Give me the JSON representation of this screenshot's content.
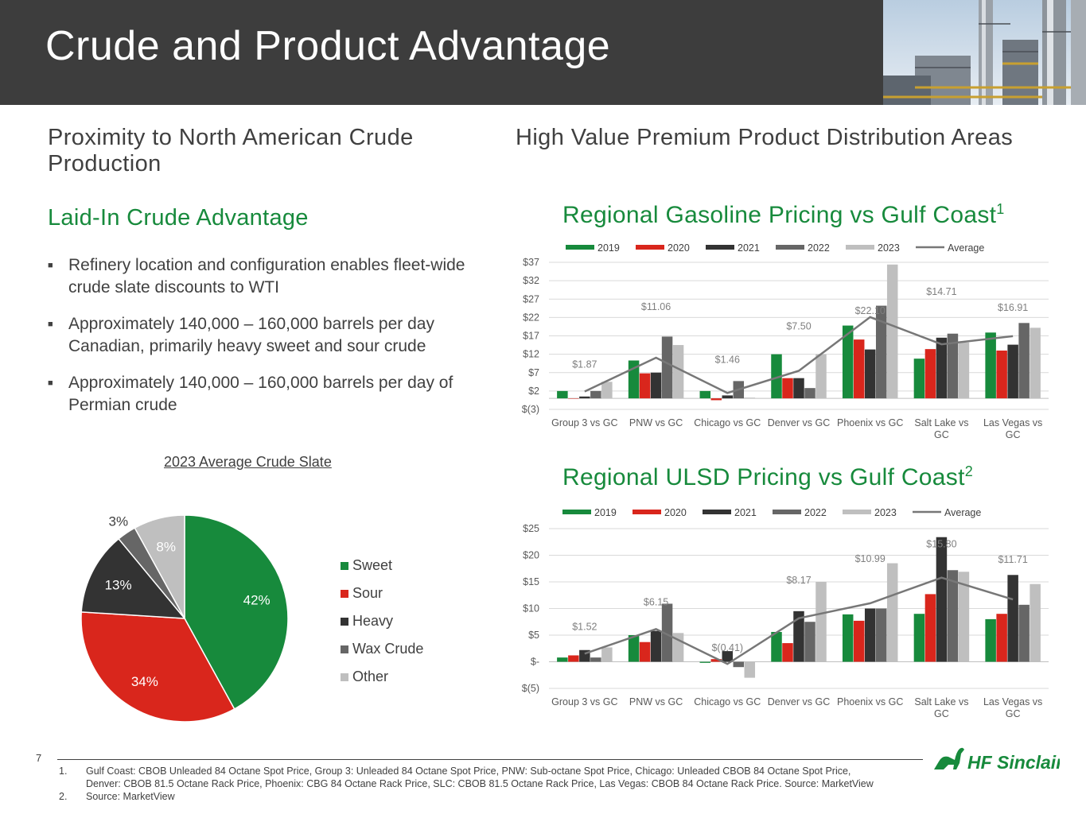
{
  "header": {
    "title": "Crude and Product Advantage"
  },
  "left": {
    "section_title": "Proximity to North American Crude Production",
    "subtitle": "Laid-In Crude Advantage",
    "bullets": [
      "Refinery location and configuration enables fleet-wide crude slate discounts to WTI",
      "Approximately 140,000 – 160,000 barrels per day Canadian, primarily heavy sweet and sour crude",
      "Approximately 140,000 – 160,000 barrels per day of Permian crude"
    ]
  },
  "right": {
    "section_title": "High Value Premium Product Distribution Areas"
  },
  "colors": {
    "y2019": "#178a3c",
    "y2020": "#d9261c",
    "y2021": "#333333",
    "y2022": "#666666",
    "y2023": "#bfbfbf",
    "average": "#777777",
    "other": "#bfbfbf"
  },
  "chart_data": [
    {
      "type": "pie",
      "title": "2023 Average Crude Slate",
      "labels": [
        "Sweet",
        "Sour",
        "Heavy",
        "Wax Crude",
        "Other"
      ],
      "values": [
        42,
        34,
        13,
        3,
        8
      ],
      "value_labels": [
        "42%",
        "34%",
        "13%",
        "3%",
        "8%"
      ],
      "colors": [
        "#178a3c",
        "#d9261c",
        "#333333",
        "#666666",
        "#bfbfbf"
      ]
    },
    {
      "type": "bar",
      "title": "Regional Gasoline Pricing vs Gulf Coast",
      "title_sup": "1",
      "categories": [
        "Group 3 vs GC",
        "PNW vs GC",
        "Chicago vs GC",
        "Denver vs GC",
        "Phoenix vs GC",
        "Salt Lake vs GC",
        "Las Vegas vs GC"
      ],
      "series": [
        {
          "name": "2019",
          "values": [
            2.0,
            10.3,
            2.0,
            12.0,
            19.8,
            10.8,
            17.9
          ]
        },
        {
          "name": "2020",
          "values": [
            0.0,
            6.8,
            -0.5,
            5.5,
            16.0,
            13.4,
            13.0
          ]
        },
        {
          "name": "2021",
          "values": [
            0.5,
            7.0,
            0.8,
            5.5,
            13.3,
            16.5,
            14.6
          ]
        },
        {
          "name": "2022",
          "values": [
            2.0,
            16.8,
            4.7,
            2.8,
            25.2,
            17.6,
            20.5
          ]
        },
        {
          "name": "2023",
          "values": [
            4.5,
            14.5,
            0.2,
            12.0,
            36.4,
            15.2,
            19.2
          ]
        }
      ],
      "average": {
        "name": "Average",
        "values": [
          1.87,
          11.06,
          1.46,
          7.5,
          22.1,
          14.71,
          16.91
        ],
        "labels": [
          "$1.87",
          "$11.06",
          "$1.46",
          "$7.50",
          "$22.10",
          "$14.71",
          "$16.91"
        ]
      },
      "yticks": [
        -3,
        2,
        7,
        12,
        17,
        22,
        27,
        32,
        37
      ],
      "ytick_labels": [
        "$(3)",
        "$2",
        "$7",
        "$12",
        "$17",
        "$22",
        "$27",
        "$32",
        "$37"
      ],
      "ylim": [
        -3,
        37
      ]
    },
    {
      "type": "bar",
      "title": "Regional ULSD Pricing vs Gulf Coast",
      "title_sup": "2",
      "categories": [
        "Group 3 vs GC",
        "PNW vs GC",
        "Chicago vs GC",
        "Denver vs GC",
        "Phoenix vs GC",
        "Salt Lake vs GC",
        "Las Vegas vs GC"
      ],
      "series": [
        {
          "name": "2019",
          "values": [
            0.8,
            5.0,
            -0.2,
            5.6,
            8.9,
            9.0,
            8.0
          ]
        },
        {
          "name": "2020",
          "values": [
            1.2,
            3.7,
            0.5,
            3.5,
            7.7,
            12.7,
            9.0
          ]
        },
        {
          "name": "2021",
          "values": [
            2.2,
            5.8,
            2.0,
            9.5,
            10.0,
            23.4,
            16.3
          ]
        },
        {
          "name": "2022",
          "values": [
            0.8,
            10.9,
            -1.0,
            7.5,
            10.0,
            17.2,
            10.7
          ]
        },
        {
          "name": "2023",
          "values": [
            2.7,
            5.4,
            -3.0,
            15.0,
            18.5,
            16.9,
            14.6
          ]
        }
      ],
      "average": {
        "name": "Average",
        "values": [
          1.52,
          6.15,
          -0.41,
          8.17,
          10.99,
          15.8,
          11.71
        ],
        "labels": [
          "$1.52",
          "$6.15",
          "$(0.41)",
          "$8.17",
          "$10.99",
          "$15.80",
          "$11.71"
        ]
      },
      "yticks": [
        -5,
        0,
        5,
        10,
        15,
        20,
        25
      ],
      "ytick_labels": [
        "$(5)",
        "$-",
        "$5",
        "$10",
        "$15",
        "$20",
        "$25"
      ],
      "ylim": [
        -5,
        25
      ]
    }
  ],
  "footer": {
    "page_number": "7",
    "notes": [
      {
        "num": "1.",
        "lines": [
          "Gulf Coast:  CBOB Unleaded 84 Octane Spot Price, Group 3:  Unleaded 84 Octane Spot Price, PNW: Sub-octane Spot Price, Chicago: Unleaded CBOB 84 Octane Spot Price,",
          "Denver:  CBOB 81.5 Octane Rack Price, Phoenix: CBG 84 Octane Rack Price, SLC:  CBOB 81.5 Octane Rack Price, Las Vegas: CBOB  84 Octane Rack Price. Source: MarketView"
        ]
      },
      {
        "num": "2.",
        "lines": [
          "Source: MarketView"
        ]
      }
    ],
    "logo_text": "HF Sinclair"
  }
}
